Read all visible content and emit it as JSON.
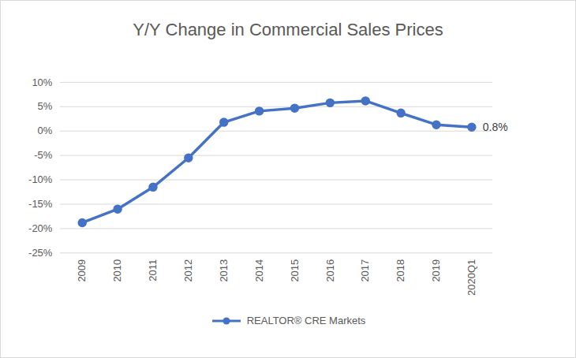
{
  "chart_data": {
    "type": "line",
    "title": "Y/Y Change in Commercial Sales Prices",
    "categories": [
      "2009",
      "2010",
      "2011",
      "2012",
      "2013",
      "2014",
      "2015",
      "2016",
      "2017",
      "2018",
      "2019",
      "2020Q1"
    ],
    "series": [
      {
        "name": "REALTOR® CRE Markets",
        "color": "#4472c4",
        "marker": "circle",
        "values": [
          -18.8,
          -16,
          -11.5,
          -5.5,
          1.8,
          4.1,
          4.7,
          5.8,
          6.2,
          3.7,
          1.3,
          0.8
        ],
        "value_labels": [
          null,
          null,
          null,
          null,
          null,
          null,
          null,
          null,
          null,
          null,
          null,
          "0.8%"
        ]
      }
    ],
    "ylim": [
      -25,
      10
    ],
    "yticks": [
      {
        "value": -25,
        "label": "-25%"
      },
      {
        "value": -20,
        "label": "-20%"
      },
      {
        "value": -15,
        "label": "-15%"
      },
      {
        "value": -10,
        "label": "-10%"
      },
      {
        "value": -5,
        "label": "-5%"
      },
      {
        "value": 0,
        "label": "0%"
      },
      {
        "value": 5,
        "label": "5%"
      },
      {
        "value": 10,
        "label": "10%"
      }
    ],
    "grid": true,
    "legend": "bottom",
    "data_labels": true
  }
}
